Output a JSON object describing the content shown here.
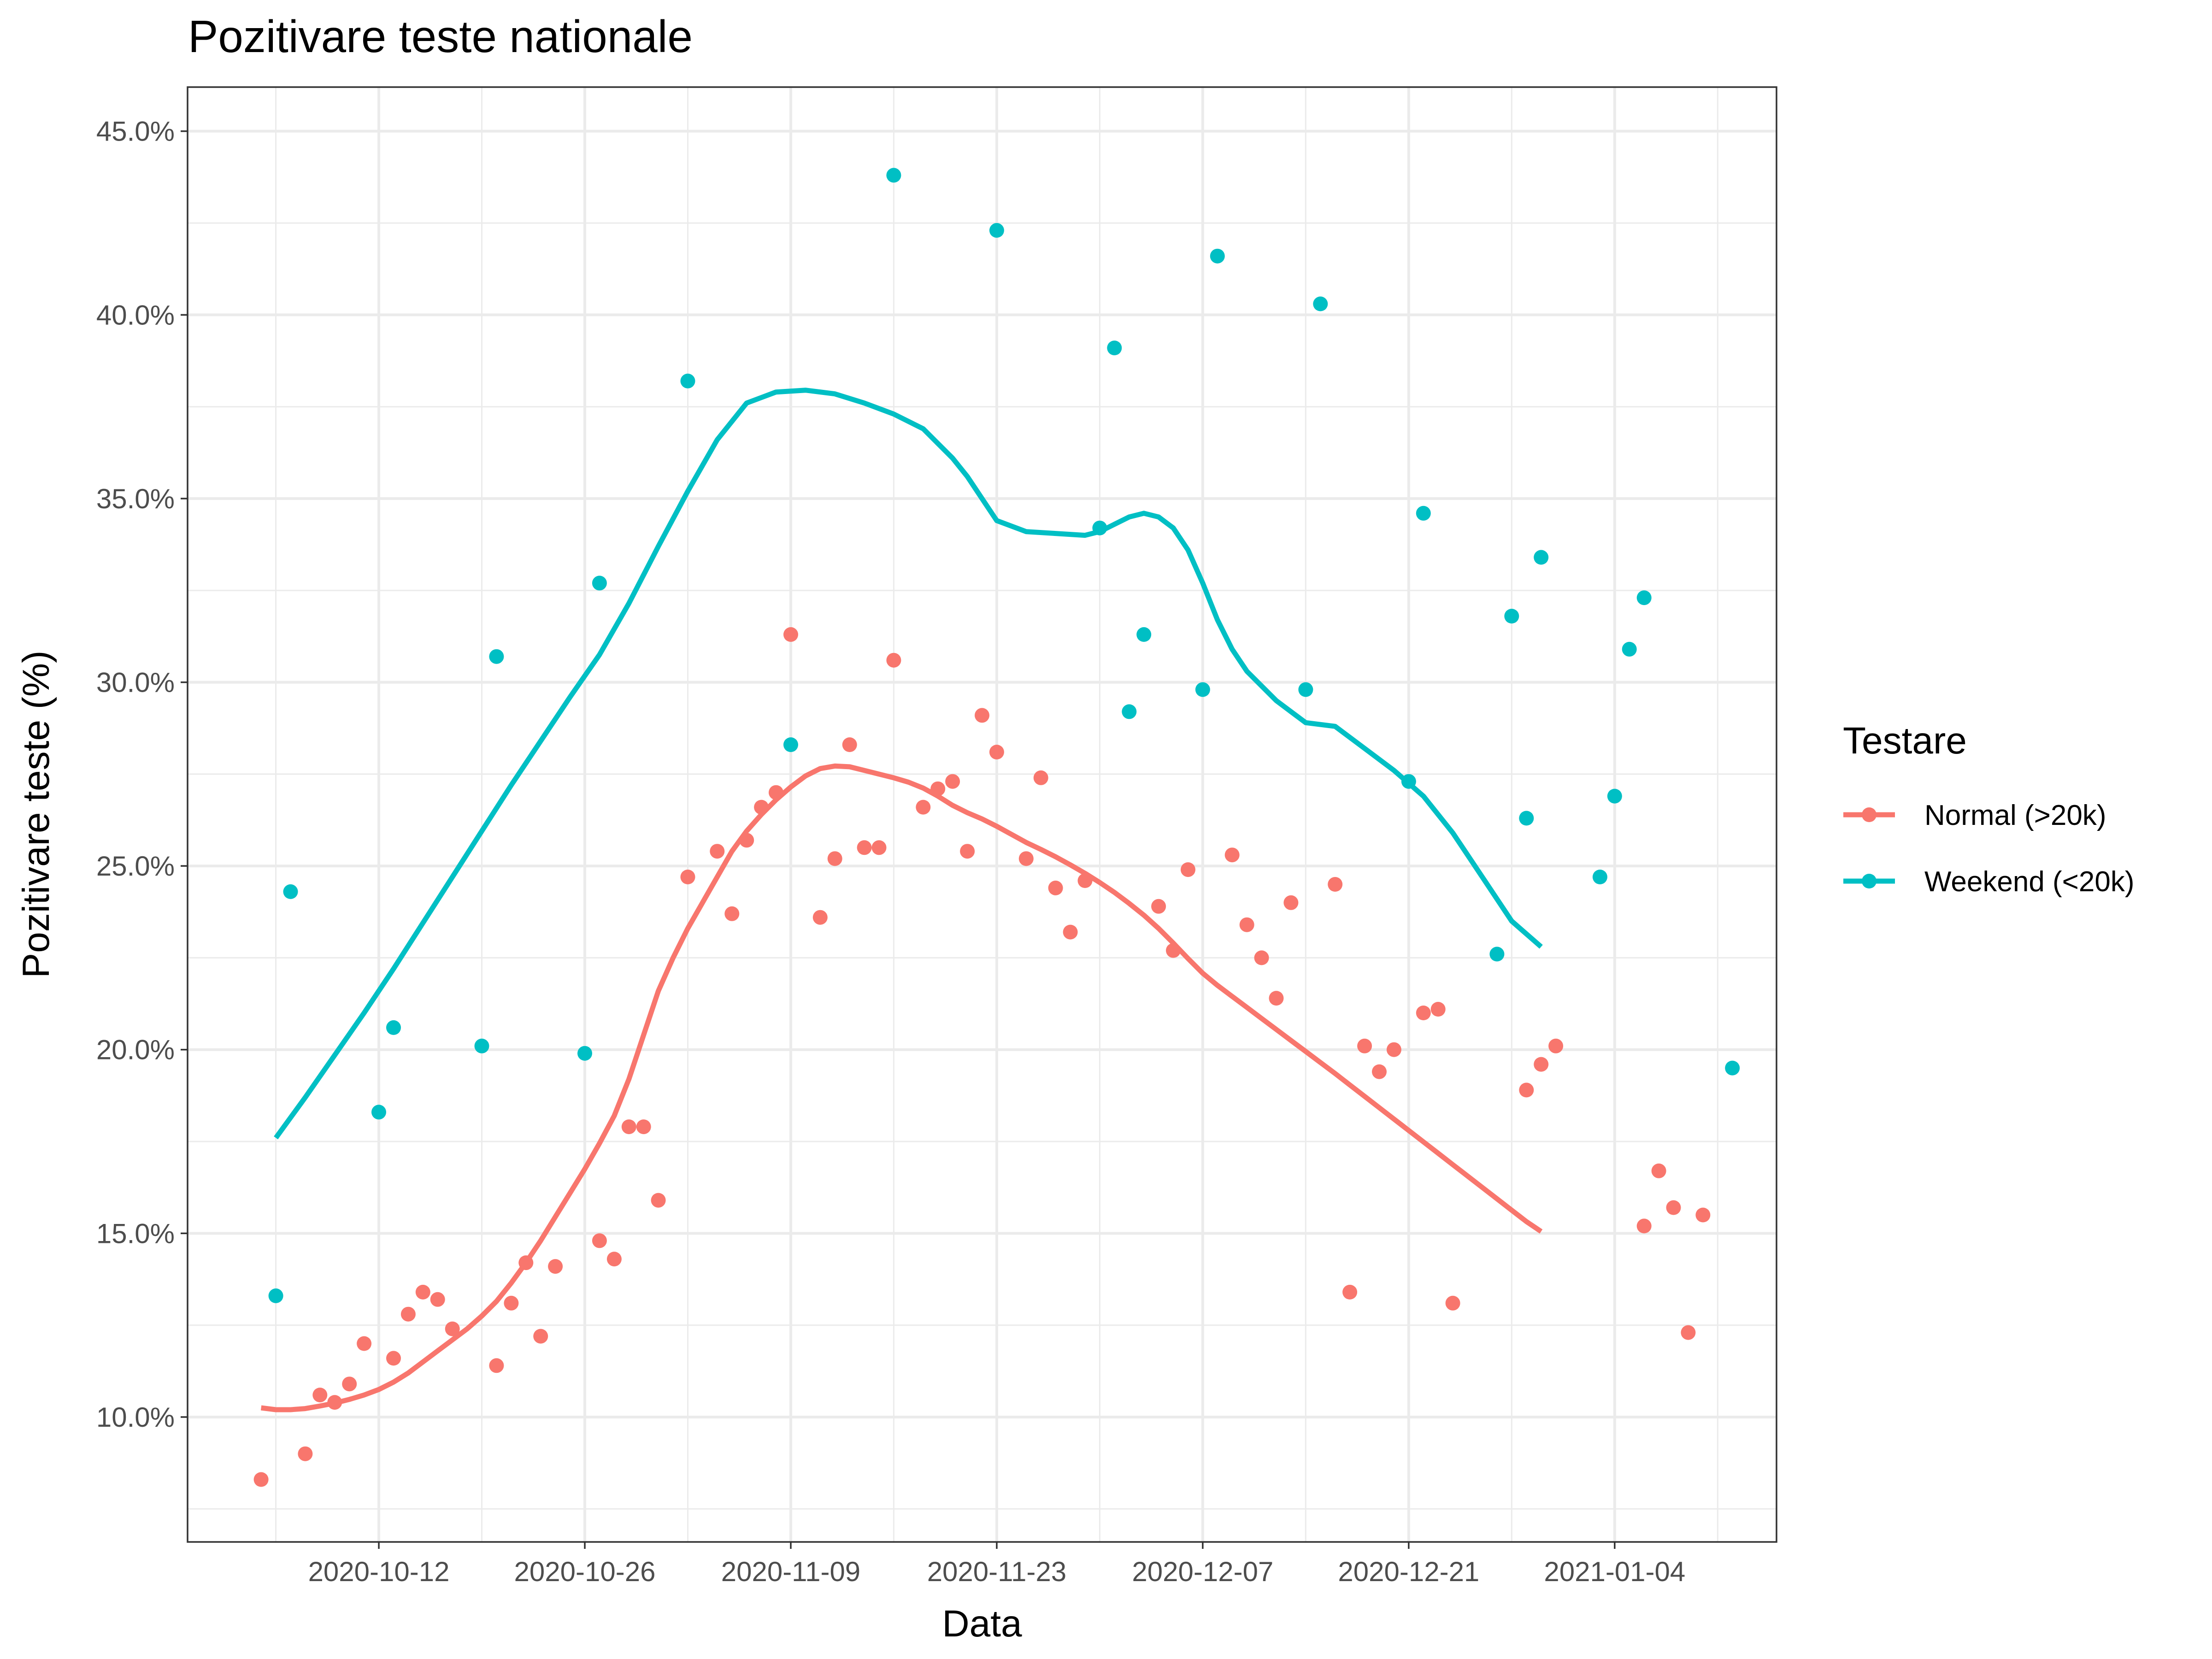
{
  "chart_data": {
    "type": "scatter",
    "title": "Pozitivare teste nationale",
    "xlabel": "Data",
    "ylabel": "Pozitivare teste (%)",
    "x_type": "date",
    "xlim": [
      "2020-09-29",
      "2021-01-15"
    ],
    "ylim": [
      6.6,
      46.2
    ],
    "x_ticks": [
      "2020-10-12",
      "2020-10-26",
      "2020-11-09",
      "2020-11-23",
      "2020-12-07",
      "2020-12-21",
      "2021-01-04"
    ],
    "y_ticks": [
      10,
      15,
      20,
      25,
      30,
      35,
      40,
      45
    ],
    "y_tick_labels": [
      "10.0%",
      "15.0%",
      "20.0%",
      "25.0%",
      "30.0%",
      "35.0%",
      "40.0%",
      "45.0%"
    ],
    "grid": true,
    "legend": {
      "title": "Testare",
      "position": "right"
    },
    "series": [
      {
        "name": "Normal (>20k)",
        "color": "#F8766D",
        "points": [
          [
            "2020-10-04",
            8.3
          ],
          [
            "2020-10-07",
            9.0
          ],
          [
            "2020-10-08",
            10.6
          ],
          [
            "2020-10-09",
            10.4
          ],
          [
            "2020-10-10",
            10.9
          ],
          [
            "2020-10-11",
            12.0
          ],
          [
            "2020-10-13",
            11.6
          ],
          [
            "2020-10-14",
            12.8
          ],
          [
            "2020-10-15",
            13.4
          ],
          [
            "2020-10-16",
            13.2
          ],
          [
            "2020-10-17",
            12.4
          ],
          [
            "2020-10-20",
            11.4
          ],
          [
            "2020-10-21",
            13.1
          ],
          [
            "2020-10-22",
            14.2
          ],
          [
            "2020-10-23",
            12.2
          ],
          [
            "2020-10-24",
            14.1
          ],
          [
            "2020-10-27",
            14.8
          ],
          [
            "2020-10-28",
            14.3
          ],
          [
            "2020-10-29",
            17.9
          ],
          [
            "2020-10-30",
            17.9
          ],
          [
            "2020-10-31",
            15.9
          ],
          [
            "2020-11-02",
            24.7
          ],
          [
            "2020-11-04",
            25.4
          ],
          [
            "2020-11-05",
            23.7
          ],
          [
            "2020-11-06",
            25.7
          ],
          [
            "2020-11-07",
            26.6
          ],
          [
            "2020-11-08",
            27.0
          ],
          [
            "2020-11-09",
            31.3
          ],
          [
            "2020-11-11",
            23.6
          ],
          [
            "2020-11-12",
            25.2
          ],
          [
            "2020-11-13",
            28.3
          ],
          [
            "2020-11-14",
            25.5
          ],
          [
            "2020-11-15",
            25.5
          ],
          [
            "2020-11-16",
            30.6
          ],
          [
            "2020-11-18",
            26.6
          ],
          [
            "2020-11-19",
            27.1
          ],
          [
            "2020-11-20",
            27.3
          ],
          [
            "2020-11-21",
            25.4
          ],
          [
            "2020-11-22",
            29.1
          ],
          [
            "2020-11-23",
            28.1
          ],
          [
            "2020-11-25",
            25.2
          ],
          [
            "2020-11-26",
            27.4
          ],
          [
            "2020-11-27",
            24.4
          ],
          [
            "2020-11-28",
            23.2
          ],
          [
            "2020-11-29",
            24.6
          ],
          [
            "2020-12-04",
            23.9
          ],
          [
            "2020-12-05",
            22.7
          ],
          [
            "2020-12-06",
            24.9
          ],
          [
            "2020-12-09",
            25.3
          ],
          [
            "2020-12-10",
            23.4
          ],
          [
            "2020-12-11",
            22.5
          ],
          [
            "2020-12-12",
            21.4
          ],
          [
            "2020-12-13",
            24.0
          ],
          [
            "2020-12-16",
            24.5
          ],
          [
            "2020-12-17",
            13.4
          ],
          [
            "2020-12-18",
            20.1
          ],
          [
            "2020-12-19",
            19.4
          ],
          [
            "2020-12-20",
            20.0
          ],
          [
            "2020-12-22",
            21.0
          ],
          [
            "2020-12-23",
            21.1
          ],
          [
            "2020-12-24",
            13.1
          ],
          [
            "2020-12-29",
            18.9
          ],
          [
            "2020-12-30",
            19.6
          ],
          [
            "2020-12-31",
            20.1
          ],
          [
            "2021-01-06",
            15.2
          ],
          [
            "2021-01-07",
            16.7
          ],
          [
            "2021-01-08",
            15.7
          ],
          [
            "2021-01-09",
            12.3
          ],
          [
            "2021-01-10",
            15.5
          ]
        ],
        "smooth": [
          [
            "2020-10-04",
            10.25
          ],
          [
            "2020-10-05",
            10.2
          ],
          [
            "2020-10-06",
            10.2
          ],
          [
            "2020-10-07",
            10.23
          ],
          [
            "2020-10-08",
            10.3
          ],
          [
            "2020-10-09",
            10.38
          ],
          [
            "2020-10-10",
            10.48
          ],
          [
            "2020-10-11",
            10.6
          ],
          [
            "2020-10-12",
            10.75
          ],
          [
            "2020-10-13",
            10.95
          ],
          [
            "2020-10-14",
            11.2
          ],
          [
            "2020-10-15",
            11.5
          ],
          [
            "2020-10-16",
            11.8
          ],
          [
            "2020-10-17",
            12.1
          ],
          [
            "2020-10-18",
            12.4
          ],
          [
            "2020-10-19",
            12.75
          ],
          [
            "2020-10-20",
            13.15
          ],
          [
            "2020-10-21",
            13.65
          ],
          [
            "2020-10-22",
            14.2
          ],
          [
            "2020-10-23",
            14.8
          ],
          [
            "2020-10-24",
            15.45
          ],
          [
            "2020-10-25",
            16.1
          ],
          [
            "2020-10-26",
            16.75
          ],
          [
            "2020-10-27",
            17.45
          ],
          [
            "2020-10-28",
            18.2
          ],
          [
            "2020-10-29",
            19.2
          ],
          [
            "2020-10-30",
            20.4
          ],
          [
            "2020-10-31",
            21.6
          ],
          [
            "2020-11-01",
            22.5
          ],
          [
            "2020-11-02",
            23.3
          ],
          [
            "2020-11-03",
            24.0
          ],
          [
            "2020-11-04",
            24.7
          ],
          [
            "2020-11-05",
            25.4
          ],
          [
            "2020-11-06",
            25.95
          ],
          [
            "2020-11-07",
            26.4
          ],
          [
            "2020-11-08",
            26.8
          ],
          [
            "2020-11-09",
            27.15
          ],
          [
            "2020-11-10",
            27.45
          ],
          [
            "2020-11-11",
            27.65
          ],
          [
            "2020-11-12",
            27.72
          ],
          [
            "2020-11-13",
            27.7
          ],
          [
            "2020-11-14",
            27.6
          ],
          [
            "2020-11-15",
            27.5
          ],
          [
            "2020-11-16",
            27.4
          ],
          [
            "2020-11-17",
            27.28
          ],
          [
            "2020-11-18",
            27.12
          ],
          [
            "2020-11-19",
            26.9
          ],
          [
            "2020-11-20",
            26.65
          ],
          [
            "2020-11-21",
            26.45
          ],
          [
            "2020-11-22",
            26.28
          ],
          [
            "2020-11-23",
            26.08
          ],
          [
            "2020-11-24",
            25.86
          ],
          [
            "2020-11-25",
            25.64
          ],
          [
            "2020-11-26",
            25.45
          ],
          [
            "2020-11-27",
            25.25
          ],
          [
            "2020-11-28",
            25.03
          ],
          [
            "2020-11-29",
            24.8
          ],
          [
            "2020-11-30",
            24.55
          ],
          [
            "2020-12-01",
            24.28
          ],
          [
            "2020-12-02",
            23.98
          ],
          [
            "2020-12-03",
            23.66
          ],
          [
            "2020-12-04",
            23.3
          ],
          [
            "2020-12-05",
            22.9
          ],
          [
            "2020-12-06",
            22.48
          ],
          [
            "2020-12-07",
            22.08
          ],
          [
            "2020-12-08",
            21.75
          ],
          [
            "2020-12-09",
            21.45
          ],
          [
            "2020-12-10",
            21.15
          ],
          [
            "2020-12-11",
            20.85
          ],
          [
            "2020-12-12",
            20.55
          ],
          [
            "2020-12-13",
            20.25
          ],
          [
            "2020-12-14",
            19.95
          ],
          [
            "2020-12-15",
            19.65
          ],
          [
            "2020-12-16",
            19.35
          ],
          [
            "2020-12-17",
            19.04
          ],
          [
            "2020-12-18",
            18.73
          ],
          [
            "2020-12-19",
            18.42
          ],
          [
            "2020-12-20",
            18.11
          ],
          [
            "2020-12-21",
            17.8
          ],
          [
            "2020-12-22",
            17.49
          ],
          [
            "2020-12-23",
            17.18
          ],
          [
            "2020-12-24",
            16.87
          ],
          [
            "2020-12-25",
            16.56
          ],
          [
            "2020-12-26",
            16.25
          ],
          [
            "2020-12-27",
            15.94
          ],
          [
            "2020-12-28",
            15.63
          ],
          [
            "2020-12-29",
            15.32
          ],
          [
            "2020-12-30",
            15.05
          ]
        ]
      },
      {
        "name": "Weekend (<20k)",
        "color": "#00BFC4",
        "points": [
          [
            "2020-10-05",
            13.3
          ],
          [
            "2020-10-06",
            24.3
          ],
          [
            "2020-10-12",
            18.3
          ],
          [
            "2020-10-13",
            20.6
          ],
          [
            "2020-10-19",
            20.1
          ],
          [
            "2020-10-20",
            30.7
          ],
          [
            "2020-10-26",
            19.9
          ],
          [
            "2020-10-27",
            32.7
          ],
          [
            "2020-11-02",
            38.2
          ],
          [
            "2020-11-09",
            28.3
          ],
          [
            "2020-11-16",
            43.8
          ],
          [
            "2020-11-23",
            42.3
          ],
          [
            "2020-11-30",
            34.2
          ],
          [
            "2020-12-01",
            39.1
          ],
          [
            "2020-12-02",
            29.2
          ],
          [
            "2020-12-03",
            31.3
          ],
          [
            "2020-12-07",
            29.8
          ],
          [
            "2020-12-08",
            41.6
          ],
          [
            "2020-12-14",
            29.8
          ],
          [
            "2020-12-15",
            40.3
          ],
          [
            "2020-12-21",
            27.3
          ],
          [
            "2020-12-22",
            34.6
          ],
          [
            "2020-12-27",
            22.6
          ],
          [
            "2020-12-28",
            31.8
          ],
          [
            "2020-12-29",
            26.3
          ],
          [
            "2020-12-30",
            33.4
          ],
          [
            "2021-01-03",
            24.7
          ],
          [
            "2021-01-04",
            26.9
          ],
          [
            "2021-01-05",
            30.9
          ],
          [
            "2021-01-06",
            32.3
          ],
          [
            "2021-01-12",
            19.5
          ]
        ],
        "smooth": [
          [
            "2020-10-05",
            17.6
          ],
          [
            "2020-10-07",
            18.7
          ],
          [
            "2020-10-09",
            19.85
          ],
          [
            "2020-10-11",
            21.0
          ],
          [
            "2020-10-13",
            22.2
          ],
          [
            "2020-10-15",
            23.45
          ],
          [
            "2020-10-17",
            24.7
          ],
          [
            "2020-10-19",
            25.95
          ],
          [
            "2020-10-21",
            27.2
          ],
          [
            "2020-10-23",
            28.4
          ],
          [
            "2020-10-25",
            29.6
          ],
          [
            "2020-10-27",
            30.75
          ],
          [
            "2020-10-29",
            32.15
          ],
          [
            "2020-10-31",
            33.7
          ],
          [
            "2020-11-02",
            35.2
          ],
          [
            "2020-11-04",
            36.6
          ],
          [
            "2020-11-06",
            37.6
          ],
          [
            "2020-11-08",
            37.9
          ],
          [
            "2020-11-10",
            37.95
          ],
          [
            "2020-11-12",
            37.85
          ],
          [
            "2020-11-14",
            37.6
          ],
          [
            "2020-11-16",
            37.3
          ],
          [
            "2020-11-18",
            36.9
          ],
          [
            "2020-11-20",
            36.1
          ],
          [
            "2020-11-21",
            35.6
          ],
          [
            "2020-11-22",
            35.0
          ],
          [
            "2020-11-23",
            34.4
          ],
          [
            "2020-11-25",
            34.1
          ],
          [
            "2020-11-27",
            34.05
          ],
          [
            "2020-11-29",
            34.0
          ],
          [
            "2020-11-30",
            34.1
          ],
          [
            "2020-12-01",
            34.3
          ],
          [
            "2020-12-02",
            34.5
          ],
          [
            "2020-12-03",
            34.6
          ],
          [
            "2020-12-04",
            34.5
          ],
          [
            "2020-12-05",
            34.2
          ],
          [
            "2020-12-06",
            33.6
          ],
          [
            "2020-12-07",
            32.7
          ],
          [
            "2020-12-08",
            31.7
          ],
          [
            "2020-12-09",
            30.9
          ],
          [
            "2020-12-10",
            30.3
          ],
          [
            "2020-12-11",
            29.9
          ],
          [
            "2020-12-12",
            29.5
          ],
          [
            "2020-12-13",
            29.2
          ],
          [
            "2020-12-14",
            28.9
          ],
          [
            "2020-12-16",
            28.8
          ],
          [
            "2020-12-18",
            28.2
          ],
          [
            "2020-12-20",
            27.6
          ],
          [
            "2020-12-22",
            26.9
          ],
          [
            "2020-12-24",
            25.9
          ],
          [
            "2020-12-26",
            24.7
          ],
          [
            "2020-12-28",
            23.5
          ],
          [
            "2020-12-30",
            22.8
          ]
        ]
      }
    ]
  }
}
